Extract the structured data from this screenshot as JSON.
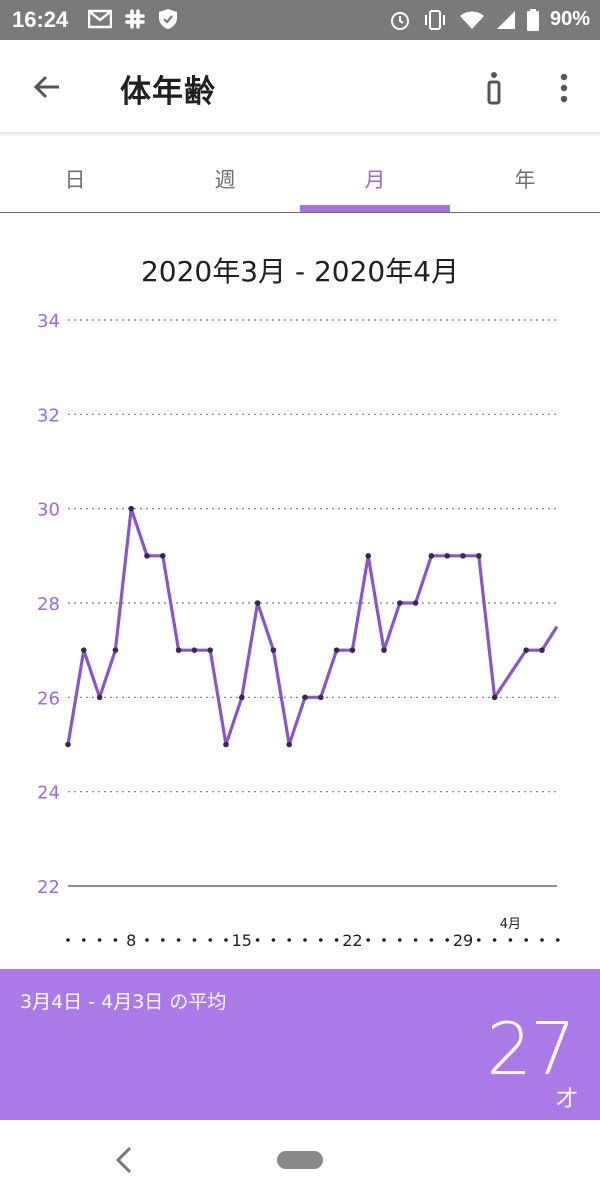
{
  "status_bar": {
    "time": "16:24",
    "battery": "90%",
    "left_icons": [
      "gmail-icon",
      "slack-icon",
      "shield-icon"
    ],
    "right_icons": [
      "alarm-icon",
      "vibrate-icon",
      "wifi-icon",
      "signal-icon",
      "battery-icon"
    ]
  },
  "app_bar": {
    "title": "体年齢",
    "icons": [
      "back-arrow-icon",
      "info-icon",
      "more-vert-icon"
    ]
  },
  "tabs": [
    {
      "label": "日",
      "active": false
    },
    {
      "label": "週",
      "active": false
    },
    {
      "label": "月",
      "active": true
    },
    {
      "label": "年",
      "active": false
    }
  ],
  "range_title": "2020年3月 - 2020年4月",
  "colors": {
    "accent": "#a97ae8",
    "line": "#8a55cc",
    "axis_text": "#9a6ad8",
    "point": "#3a2a4a"
  },
  "chart_data": {
    "type": "line",
    "title": "",
    "xlabel": "",
    "ylabel": "",
    "ylim": [
      22,
      34
    ],
    "yticks": [
      22,
      24,
      26,
      28,
      30,
      32,
      34
    ],
    "grid": true,
    "x_start_offset": 0,
    "x_tick_labels": [
      {
        "day_index": 4,
        "label": "8"
      },
      {
        "day_index": 11,
        "label": "15"
      },
      {
        "day_index": 18,
        "label": "22"
      },
      {
        "day_index": 25,
        "label": "29"
      }
    ],
    "month_marker": {
      "day_index": 28,
      "label": "4月"
    },
    "series": [
      {
        "values": [
          25,
          27,
          26,
          27,
          30,
          29,
          29,
          27,
          27,
          27,
          25,
          26,
          28,
          27,
          25,
          26,
          26,
          27,
          27,
          29,
          27,
          28,
          28,
          29,
          29,
          29,
          29,
          26,
          26.5,
          27,
          27,
          27.5
        ]
      }
    ]
  },
  "summary": {
    "label": "3月4日 - 4月3日 の平均",
    "value": "27",
    "unit": "才"
  },
  "nav_bar": {
    "icons": [
      "nav-back-icon",
      "home-pill-icon"
    ]
  }
}
